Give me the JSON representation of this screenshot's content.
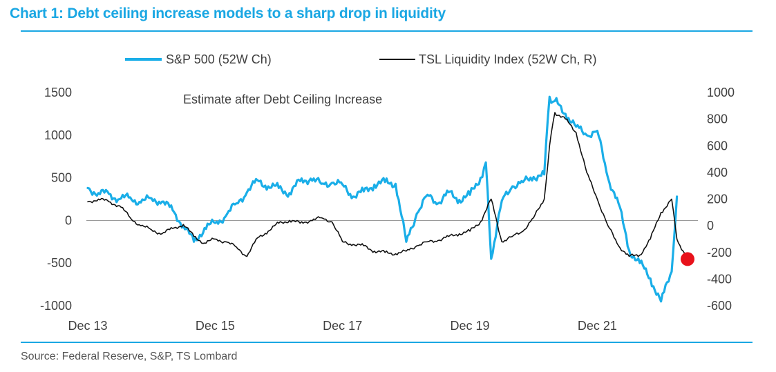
{
  "title": "Chart 1: Debt ceiling increase models to a sharp drop in liquidity",
  "source": "Source: Federal Reserve, S&P, TS Lombard",
  "colors": {
    "accent": "#1aa7e3",
    "sp500": "#1aaee8",
    "liquidity": "#111111",
    "estimate_marker": "#e8121b",
    "zero_line": "#9a9a9a",
    "text": "#404040"
  },
  "chart_data": {
    "type": "line",
    "title": "Chart 1: Debt ceiling increase models to a sharp drop in liquidity",
    "annotation": "Estimate after Debt Ceiling Increase",
    "legend_position": "top",
    "grid": false,
    "x_ticks": [
      "Dec 13",
      "Dec 15",
      "Dec 17",
      "Dec 19",
      "Dec 21"
    ],
    "xlim": [
      "2013-12",
      "2023-05"
    ],
    "y_left": {
      "ticks": [
        "1500",
        "1000",
        "500",
        "0",
        "-500",
        "-1000"
      ],
      "lim": [
        -1000,
        1500
      ]
    },
    "y_right": {
      "ticks": [
        "1000",
        "800",
        "600",
        "400",
        "200",
        "0",
        "-200",
        "-400",
        "-600"
      ],
      "lim": [
        -600,
        1000
      ]
    },
    "series": [
      {
        "name": "S&P 500 (52W Ch)",
        "axis": "left",
        "x": [
          "2013-12",
          "2014-02",
          "2014-04",
          "2014-06",
          "2014-08",
          "2014-10",
          "2014-12",
          "2015-02",
          "2015-04",
          "2015-06",
          "2015-08",
          "2015-10",
          "2015-12",
          "2016-02",
          "2016-04",
          "2016-06",
          "2016-08",
          "2016-10",
          "2016-12",
          "2017-02",
          "2017-04",
          "2017-06",
          "2017-08",
          "2017-10",
          "2017-12",
          "2018-02",
          "2018-04",
          "2018-06",
          "2018-08",
          "2018-10",
          "2018-12",
          "2019-02",
          "2019-04",
          "2019-06",
          "2019-08",
          "2019-10",
          "2019-12",
          "2020-02",
          "2020-03",
          "2020-04",
          "2020-06",
          "2020-08",
          "2020-10",
          "2020-12",
          "2021-02",
          "2021-03",
          "2021-04",
          "2021-06",
          "2021-08",
          "2021-10",
          "2021-12",
          "2022-02",
          "2022-04",
          "2022-06",
          "2022-08",
          "2022-10",
          "2022-12",
          "2023-02",
          "2023-03"
        ],
        "values": [
          380,
          320,
          310,
          250,
          270,
          210,
          260,
          220,
          120,
          -60,
          -250,
          -90,
          -30,
          50,
          200,
          330,
          470,
          400,
          380,
          320,
          460,
          490,
          430,
          440,
          420,
          280,
          340,
          420,
          450,
          430,
          -250,
          80,
          300,
          200,
          330,
          240,
          300,
          500,
          680,
          -450,
          230,
          400,
          450,
          510,
          540,
          1450,
          1400,
          1250,
          1100,
          1000,
          1050,
          500,
          200,
          -350,
          -500,
          -680,
          -950,
          -600,
          280
        ]
      },
      {
        "name": "TSL Liquidity Index (52W Ch, R)",
        "axis": "right",
        "x": [
          "2013-12",
          "2014-02",
          "2014-04",
          "2014-06",
          "2014-08",
          "2014-10",
          "2014-12",
          "2015-02",
          "2015-04",
          "2015-06",
          "2015-08",
          "2015-10",
          "2015-12",
          "2016-02",
          "2016-04",
          "2016-06",
          "2016-08",
          "2016-10",
          "2016-12",
          "2017-02",
          "2017-04",
          "2017-06",
          "2017-08",
          "2017-10",
          "2017-12",
          "2018-02",
          "2018-04",
          "2018-06",
          "2018-08",
          "2018-10",
          "2018-12",
          "2019-02",
          "2019-04",
          "2019-06",
          "2019-08",
          "2019-10",
          "2019-12",
          "2020-02",
          "2020-04",
          "2020-06",
          "2020-08",
          "2020-10",
          "2020-12",
          "2021-02",
          "2021-03",
          "2021-04",
          "2021-06",
          "2021-08",
          "2021-10",
          "2021-12",
          "2022-02",
          "2022-04",
          "2022-06",
          "2022-08",
          "2022-10",
          "2022-12",
          "2023-02",
          "2023-03",
          "2023-05"
        ],
        "values": [
          180,
          200,
          180,
          150,
          60,
          0,
          -30,
          -60,
          -20,
          10,
          -80,
          -130,
          -100,
          -120,
          -160,
          -230,
          -90,
          -40,
          20,
          40,
          20,
          40,
          60,
          30,
          -120,
          -140,
          -150,
          -190,
          -200,
          -210,
          -190,
          -150,
          -120,
          -110,
          -80,
          -60,
          -40,
          30,
          200,
          -120,
          -80,
          -40,
          60,
          200,
          600,
          850,
          800,
          700,
          400,
          200,
          0,
          -150,
          -230,
          -220,
          -100,
          100,
          200,
          -100,
          -250
        ]
      }
    ],
    "estimate_point": {
      "x": "2023-05",
      "value": -250,
      "axis": "right"
    }
  }
}
